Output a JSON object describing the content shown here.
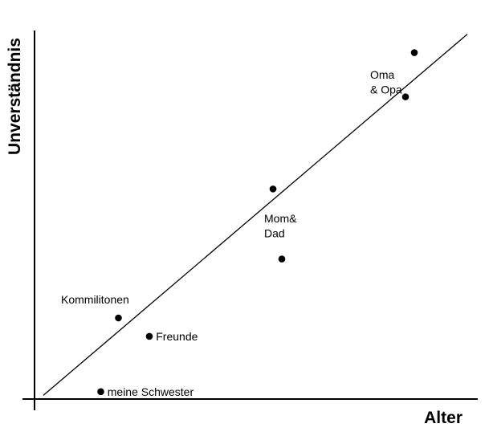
{
  "chart_data": {
    "type": "scatter",
    "title": "",
    "xlabel": "Alter",
    "ylabel": "Unverständnis",
    "grid": false,
    "legend": "none",
    "axis_ticks": "none",
    "xlim": [
      0,
      100
    ],
    "ylim": [
      0,
      100
    ],
    "points": [
      {
        "x": 15,
        "y": 2
      },
      {
        "x": 19,
        "y": 22
      },
      {
        "x": 26,
        "y": 17
      },
      {
        "x": 54,
        "y": 57
      },
      {
        "x": 56,
        "y": 38
      },
      {
        "x": 84,
        "y": 82
      },
      {
        "x": 86,
        "y": 94
      }
    ],
    "trend_line": {
      "x": [
        2,
        98
      ],
      "y": [
        1,
        99
      ]
    },
    "annotations": [
      {
        "text": "meine Schwester",
        "x": 16.5,
        "y": 2
      },
      {
        "text": "Freunde",
        "x": 27.5,
        "y": 17
      },
      {
        "text": "Kommilitonen",
        "x": 6,
        "y": 27
      },
      {
        "text": "Mom&",
        "x": 52,
        "y": 49
      },
      {
        "text": "Dad",
        "x": 52,
        "y": 45
      },
      {
        "text": "Oma",
        "x": 76,
        "y": 88
      },
      {
        "text": "& Opa",
        "x": 76,
        "y": 84
      }
    ],
    "colors": {
      "background": "#ffffff",
      "axis": "#000000",
      "marker": "#000000",
      "text": "#000000"
    }
  }
}
